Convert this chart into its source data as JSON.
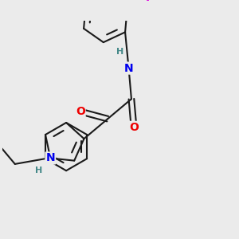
{
  "background_color": "#ebebeb",
  "bond_color": "#1a1a1a",
  "atom_colors": {
    "N": "#0000ee",
    "O": "#ee0000",
    "F": "#dd00dd",
    "NH": "#448888",
    "C": "#1a1a1a"
  },
  "font_size_atom": 10,
  "figsize": [
    3.0,
    3.0
  ],
  "dpi": 100
}
